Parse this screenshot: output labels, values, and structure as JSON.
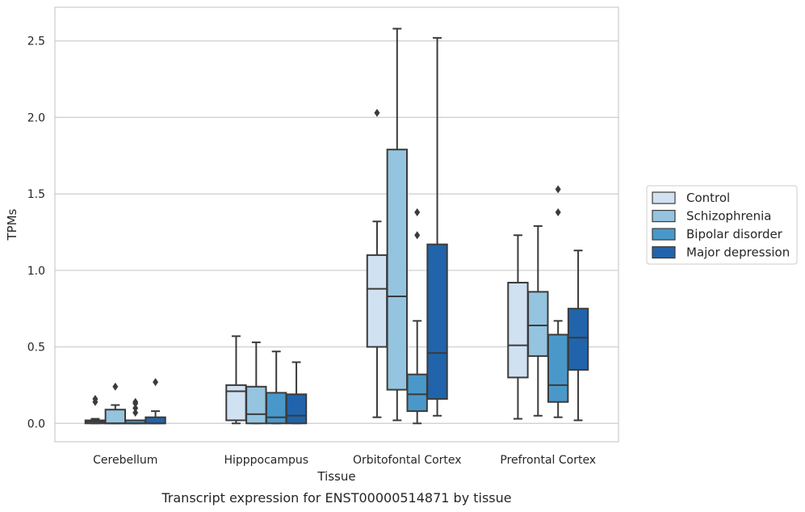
{
  "chart_data": {
    "type": "boxplot",
    "caption": "Transcript expression for ENST00000514871 by tissue",
    "xlabel": "Tissue",
    "ylabel": "TPMs",
    "ylim": [
      -0.12,
      2.72
    ],
    "yticks": [
      0.0,
      0.5,
      1.0,
      1.5,
      2.0,
      2.5
    ],
    "ytick_labels": [
      "0.0",
      "0.5",
      "1.0",
      "1.5",
      "2.0",
      "2.5"
    ],
    "grid": "horizontal",
    "legend_position": "right",
    "categories": [
      "Cerebellum",
      "Hipppocampus",
      "Orbitofontal Cortex",
      "Prefrontal Cortex"
    ],
    "series": [
      {
        "name": "Control",
        "color": "#d0e1f2",
        "boxes": [
          {
            "whislo": 0.0,
            "q1": 0.0,
            "med": 0.01,
            "q3": 0.02,
            "whishi": 0.03,
            "fliers": [
              0.14,
              0.16
            ]
          },
          {
            "whislo": 0.0,
            "q1": 0.02,
            "med": 0.21,
            "q3": 0.25,
            "whishi": 0.57,
            "fliers": []
          },
          {
            "whislo": 0.04,
            "q1": 0.5,
            "med": 0.88,
            "q3": 1.1,
            "whishi": 1.32,
            "fliers": [
              2.03
            ]
          },
          {
            "whislo": 0.03,
            "q1": 0.3,
            "med": 0.51,
            "q3": 0.92,
            "whishi": 1.23,
            "fliers": []
          }
        ]
      },
      {
        "name": "Schizophrenia",
        "color": "#94c4df",
        "boxes": [
          {
            "whislo": 0.0,
            "q1": 0.0,
            "med": 0.0,
            "q3": 0.09,
            "whishi": 0.12,
            "fliers": [
              0.24
            ]
          },
          {
            "whislo": 0.0,
            "q1": 0.0,
            "med": 0.06,
            "q3": 0.24,
            "whishi": 0.53,
            "fliers": []
          },
          {
            "whislo": 0.02,
            "q1": 0.22,
            "med": 0.83,
            "q3": 1.79,
            "whishi": 2.58,
            "fliers": []
          },
          {
            "whislo": 0.05,
            "q1": 0.44,
            "med": 0.64,
            "q3": 0.86,
            "whishi": 1.29,
            "fliers": []
          }
        ]
      },
      {
        "name": "Bipolar disorder",
        "color": "#4a98c9",
        "boxes": [
          {
            "whislo": 0.0,
            "q1": 0.0,
            "med": 0.0,
            "q3": 0.02,
            "whishi": 0.02,
            "fliers": [
              0.07,
              0.1,
              0.13,
              0.14
            ]
          },
          {
            "whislo": 0.0,
            "q1": 0.0,
            "med": 0.04,
            "q3": 0.2,
            "whishi": 0.47,
            "fliers": []
          },
          {
            "whislo": 0.0,
            "q1": 0.08,
            "med": 0.19,
            "q3": 0.32,
            "whishi": 0.67,
            "fliers": [
              1.23,
              1.38
            ]
          },
          {
            "whislo": 0.04,
            "q1": 0.14,
            "med": 0.25,
            "q3": 0.58,
            "whishi": 0.67,
            "fliers": [
              1.38,
              1.53
            ]
          }
        ]
      },
      {
        "name": "Major depression",
        "color": "#2164ab",
        "boxes": [
          {
            "whislo": 0.0,
            "q1": 0.0,
            "med": 0.0,
            "q3": 0.04,
            "whishi": 0.08,
            "fliers": [
              0.27
            ]
          },
          {
            "whislo": 0.0,
            "q1": 0.0,
            "med": 0.05,
            "q3": 0.19,
            "whishi": 0.4,
            "fliers": []
          },
          {
            "whislo": 0.05,
            "q1": 0.16,
            "med": 0.46,
            "q3": 1.17,
            "whishi": 2.52,
            "fliers": []
          },
          {
            "whislo": 0.02,
            "q1": 0.35,
            "med": 0.56,
            "q3": 0.75,
            "whishi": 1.13,
            "fliers": []
          }
        ]
      }
    ]
  }
}
